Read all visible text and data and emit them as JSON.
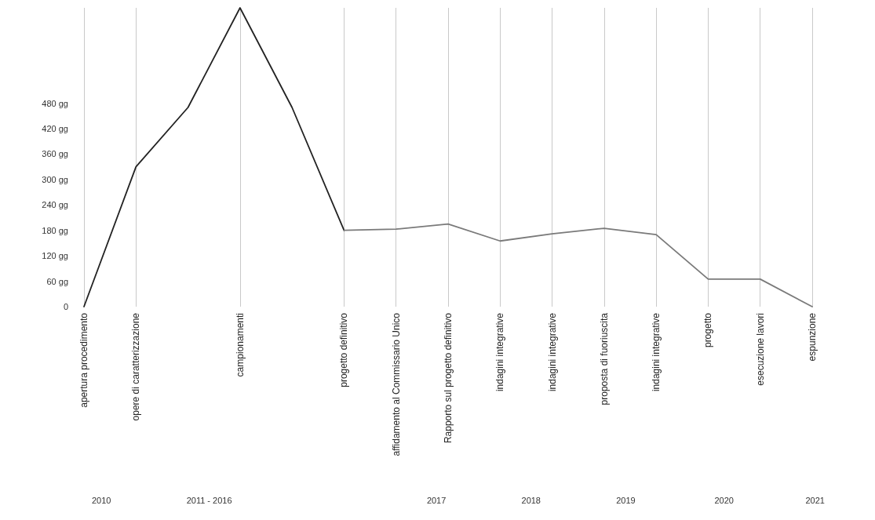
{
  "chart_data": {
    "type": "line",
    "categories": [
      "apertura procedimento",
      "opere di caratterizzazione",
      null,
      "campionamenti",
      null,
      "progetto definitivo",
      "affidamento al Commissario Unico",
      "Rapporto sul progetto definitivo",
      "indagini integrative",
      "indagini integrative",
      "proposta di fuoriuscita",
      "indagini integrative",
      "progetto",
      "esecuzione lavori",
      "espunzione"
    ],
    "series": [
      {
        "color": "#222222",
        "values": [
          0,
          330,
          470,
          705,
          470,
          180,
          null,
          null,
          null,
          null,
          null,
          null,
          null,
          null,
          null
        ]
      },
      {
        "color": "#7a7a7a",
        "values": [
          null,
          null,
          null,
          null,
          null,
          180,
          183,
          195,
          155,
          172,
          185,
          170,
          65,
          65,
          0
        ]
      }
    ],
    "ylim": [
      0,
      705
    ],
    "yticks": [
      {
        "value": 0,
        "label": "0"
      },
      {
        "value": 60,
        "label": "60 gg"
      },
      {
        "value": 120,
        "label": "120 gg"
      },
      {
        "value": 180,
        "label": "180 gg"
      },
      {
        "value": 240,
        "label": "240 gg"
      },
      {
        "value": 300,
        "label": "300 gg"
      },
      {
        "value": 360,
        "label": "360 gg"
      },
      {
        "value": 420,
        "label": "420 gg"
      },
      {
        "value": 480,
        "label": "480 gg"
      }
    ],
    "grid": "x",
    "marker": "none",
    "line_style": "solid",
    "annotations": [
      "2010",
      "2011 - 2016",
      "2017",
      "2018",
      "2019",
      "2020",
      "2021"
    ]
  }
}
